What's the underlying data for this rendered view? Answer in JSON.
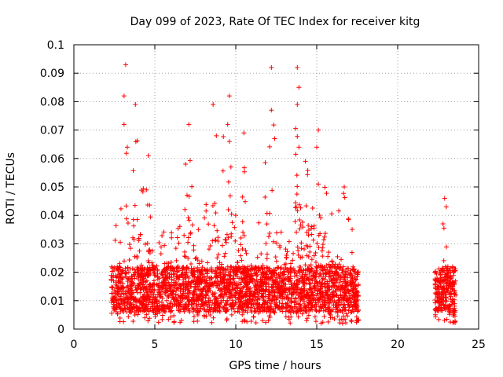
{
  "chart_data": {
    "type": "scatter",
    "title": "Day 099 of 2023, Rate Of TEC Index for receiver kitg",
    "xlabel": "GPS time / hours",
    "ylabel": "ROTI / TECUs",
    "xlim": [
      0,
      25
    ],
    "ylim": [
      0,
      0.1
    ],
    "xticks": [
      0,
      5,
      10,
      15,
      20,
      25
    ],
    "xtick_labels": [
      "0",
      "5",
      "10",
      "15",
      "20",
      "25"
    ],
    "yticks": [
      0,
      0.01,
      0.02,
      0.03,
      0.04,
      0.05,
      0.06,
      0.07,
      0.08,
      0.09,
      0.1
    ],
    "ytick_labels": [
      "0",
      "0.01",
      "0.02",
      "0.03",
      "0.04",
      "0.05",
      "0.06",
      "0.07",
      "0.08",
      "0.09",
      "0.1"
    ],
    "grid": true,
    "marker": "+",
    "color": "#ff0000",
    "series": [
      {
        "name": "ROTI",
        "point_density": [
          {
            "x_start": 2.3,
            "x_end": 10.8,
            "count": 1600
          },
          {
            "x_start": 10.8,
            "x_end": 17.6,
            "count": 1300
          },
          {
            "x_start": 22.3,
            "x_end": 23.6,
            "count": 260
          }
        ],
        "envelope": [
          [
            2.3,
            0.032
          ],
          [
            2.6,
            0.038
          ],
          [
            3.0,
            0.045
          ],
          [
            3.2,
            0.093
          ],
          [
            3.5,
            0.05
          ],
          [
            3.8,
            0.079
          ],
          [
            4.2,
            0.052
          ],
          [
            4.6,
            0.061
          ],
          [
            5.0,
            0.038
          ],
          [
            5.6,
            0.034
          ],
          [
            6.0,
            0.038
          ],
          [
            6.6,
            0.045
          ],
          [
            7.0,
            0.072
          ],
          [
            7.5,
            0.048
          ],
          [
            8.0,
            0.048
          ],
          [
            8.6,
            0.079
          ],
          [
            9.0,
            0.062
          ],
          [
            9.6,
            0.082
          ],
          [
            10.0,
            0.05
          ],
          [
            10.5,
            0.069
          ],
          [
            10.8,
            0.032
          ],
          [
            11.5,
            0.04
          ],
          [
            12.2,
            0.092
          ],
          [
            12.8,
            0.045
          ],
          [
            13.5,
            0.056
          ],
          [
            13.8,
            0.092
          ],
          [
            14.2,
            0.06
          ],
          [
            15.0,
            0.07
          ],
          [
            15.6,
            0.05
          ],
          [
            16.0,
            0.04
          ],
          [
            16.7,
            0.05
          ],
          [
            17.1,
            0.04
          ],
          [
            17.5,
            0.02
          ],
          [
            22.3,
            0.028
          ],
          [
            22.6,
            0.024
          ],
          [
            22.9,
            0.046
          ],
          [
            23.2,
            0.032
          ],
          [
            23.5,
            0.022
          ]
        ],
        "peaks": [
          [
            3.2,
            0.093
          ],
          [
            3.1,
            0.082
          ],
          [
            3.8,
            0.079
          ],
          [
            3.1,
            0.072
          ],
          [
            3.3,
            0.064
          ],
          [
            4.6,
            0.061
          ],
          [
            7.1,
            0.072
          ],
          [
            6.9,
            0.058
          ],
          [
            8.6,
            0.079
          ],
          [
            8.8,
            0.068
          ],
          [
            9.6,
            0.082
          ],
          [
            9.5,
            0.072
          ],
          [
            9.6,
            0.066
          ],
          [
            9.7,
            0.057
          ],
          [
            10.5,
            0.069
          ],
          [
            12.2,
            0.092
          ],
          [
            12.2,
            0.077
          ],
          [
            12.4,
            0.067
          ],
          [
            13.8,
            0.092
          ],
          [
            13.9,
            0.085
          ],
          [
            13.8,
            0.079
          ],
          [
            13.9,
            0.064
          ],
          [
            14.3,
            0.059
          ],
          [
            15.1,
            0.07
          ],
          [
            15.0,
            0.064
          ],
          [
            15.1,
            0.051
          ],
          [
            16.7,
            0.05
          ],
          [
            22.9,
            0.046
          ],
          [
            23.0,
            0.043
          ],
          [
            22.8,
            0.037
          ]
        ],
        "baseline_min": 0.002
      }
    ]
  }
}
